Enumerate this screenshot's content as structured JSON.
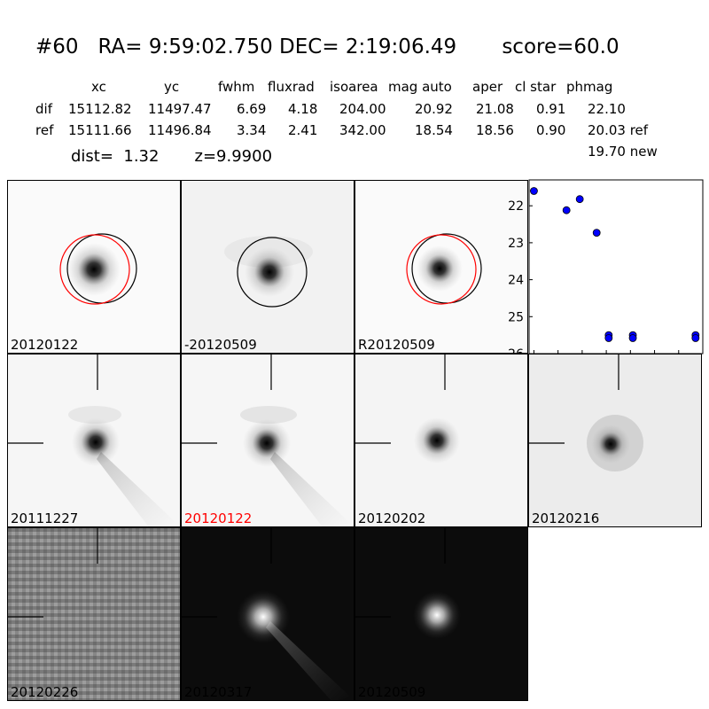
{
  "header": {
    "title": "#60   RA= 9:59:02.750 DEC= 2:19:06.49       score=60.0",
    "columns": [
      "xc",
      "yc",
      "fwhm",
      "fluxrad",
      "isoarea",
      "mag auto",
      "aper",
      "cl star",
      "phmag"
    ],
    "rows": [
      {
        "label": "dif",
        "values": [
          "15112.82",
          "11497.47",
          "6.69",
          "4.18",
          "204.00",
          "20.92",
          "21.08",
          "0.91",
          "22.10"
        ]
      },
      {
        "label": "ref",
        "values": [
          "15111.66",
          "11496.84",
          "3.34",
          "2.41",
          "342.00",
          "18.54",
          "18.56",
          "0.90",
          "20.03 ref"
        ]
      }
    ],
    "dist_line": "dist=  1.32       z=9.9900",
    "new_mag": "19.70 new"
  },
  "stamps": [
    {
      "label": "20120122",
      "label_color": "#000000"
    },
    {
      "label": "-20120509",
      "label_color": "#000000"
    },
    {
      "label": "R20120509",
      "label_color": "#000000"
    },
    {
      "label": "20111227",
      "label_color": "#000000"
    },
    {
      "label": "20120122",
      "label_color": "#ff0000"
    },
    {
      "label": "20120202",
      "label_color": "#000000"
    },
    {
      "label": "20120216",
      "label_color": "#000000"
    },
    {
      "label": "20120226",
      "label_color": "#000000"
    },
    {
      "label": "20120317",
      "label_color": "#000000"
    },
    {
      "label": "20120509",
      "label_color": "#000000"
    }
  ],
  "chart_data": {
    "type": "scatter",
    "x": [
      0,
      27,
      38,
      52,
      62,
      62,
      82,
      82,
      134,
      134
    ],
    "y": [
      21.6,
      22.12,
      21.82,
      22.73,
      25.5,
      25.58,
      25.5,
      25.58,
      25.5,
      25.58
    ],
    "xlim": [
      -4,
      140
    ],
    "ylim": [
      26,
      21.3
    ],
    "xticks": [
      "0",
      "20",
      "40",
      "60",
      "80",
      "100",
      "120"
    ],
    "yticks": [
      "22",
      "23",
      "24",
      "25",
      "26"
    ],
    "marker_color": "#0000ff"
  }
}
